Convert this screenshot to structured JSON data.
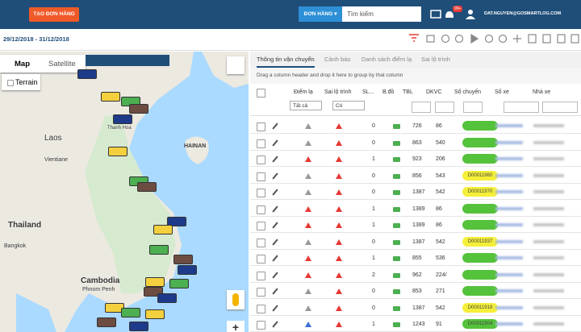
{
  "header": {
    "create_button": "TẠO ĐƠN HÀNG",
    "search_type": "ĐƠN HÀNG ▾",
    "search_placeholder": "Tìm kiếm",
    "notification_badge": "99+",
    "user": "DAT.NGUYEN@GOSMARTLOG.COM"
  },
  "toolbar": {
    "date_range": "29/12/2018 - 31/12/2018"
  },
  "map": {
    "tabs": [
      "Map",
      "Satellite"
    ],
    "terrain": "Terrain",
    "labels": [
      "Laos",
      "Vientiane",
      "Thailand",
      "Bangkok",
      "Cambodia",
      "Phnom Penh",
      "HAINAN",
      "Thanh Hoa"
    ],
    "zoom_in": "+"
  },
  "panel": {
    "tabs": [
      "Thông tin vận chuyển",
      "Cảnh báo",
      "Danh sách điểm lạ",
      "Sai lộ trình"
    ],
    "group_hint": "Drag a column header and drop it here to group by that column",
    "columns": [
      "Điểm lạ",
      "Sai lộ trình",
      "SL...",
      "B.đồ",
      "TBL",
      "DKVC",
      "Số chuyến",
      "Số xe",
      "Nhà xe"
    ],
    "filters": [
      "Tất cả",
      "Có"
    ],
    "rows": [
      {
        "diem_la": "gray",
        "sl": 0,
        "tbl": 726,
        "dkvc": 86,
        "chip": "green",
        "so_chuyen": null
      },
      {
        "diem_la": "gray",
        "sl": 0,
        "tbl": 863,
        "dkvc": 540,
        "chip": "green",
        "so_chuyen": null
      },
      {
        "diem_la": "red",
        "sl": 1,
        "tbl": 923,
        "dkvc": 206,
        "chip": "green",
        "so_chuyen": null
      },
      {
        "diem_la": "gray",
        "sl": 0,
        "tbl": 856,
        "dkvc": 543,
        "chip": "yellow",
        "so_chuyen": "D00011960"
      },
      {
        "diem_la": "gray",
        "sl": 0,
        "tbl": 1387,
        "dkvc": 542,
        "chip": "yellow",
        "so_chuyen": "D00011970"
      },
      {
        "diem_la": "red",
        "sl": 1,
        "tbl": 1389,
        "dkvc": 86,
        "chip": "green",
        "so_chuyen": null
      },
      {
        "diem_la": "red",
        "sl": 1,
        "tbl": 1389,
        "dkvc": 86,
        "chip": "green",
        "so_chuyen": null
      },
      {
        "diem_la": "gray",
        "sl": 0,
        "tbl": 1387,
        "dkvc": 542,
        "chip": "yellow",
        "so_chuyen": "D00011937"
      },
      {
        "diem_la": "red",
        "sl": 1,
        "tbl": 855,
        "dkvc": 536,
        "chip": "green",
        "so_chuyen": null
      },
      {
        "diem_la": "red",
        "sl": 2,
        "tbl": 962,
        "dkvc": "224/",
        "chip": "green",
        "so_chuyen": null
      },
      {
        "diem_la": "gray",
        "sl": 0,
        "tbl": 853,
        "dkvc": 271,
        "chip": "green",
        "so_chuyen": null
      },
      {
        "diem_la": "gray",
        "sl": 0,
        "tbl": 1387,
        "dkvc": 542,
        "chip": "yellow",
        "so_chuyen": "D00011918"
      },
      {
        "diem_la": "blue",
        "sl": 1,
        "tbl": 1243,
        "dkvc": 91,
        "chip": "green",
        "so_chuyen": "D00011904"
      }
    ]
  }
}
